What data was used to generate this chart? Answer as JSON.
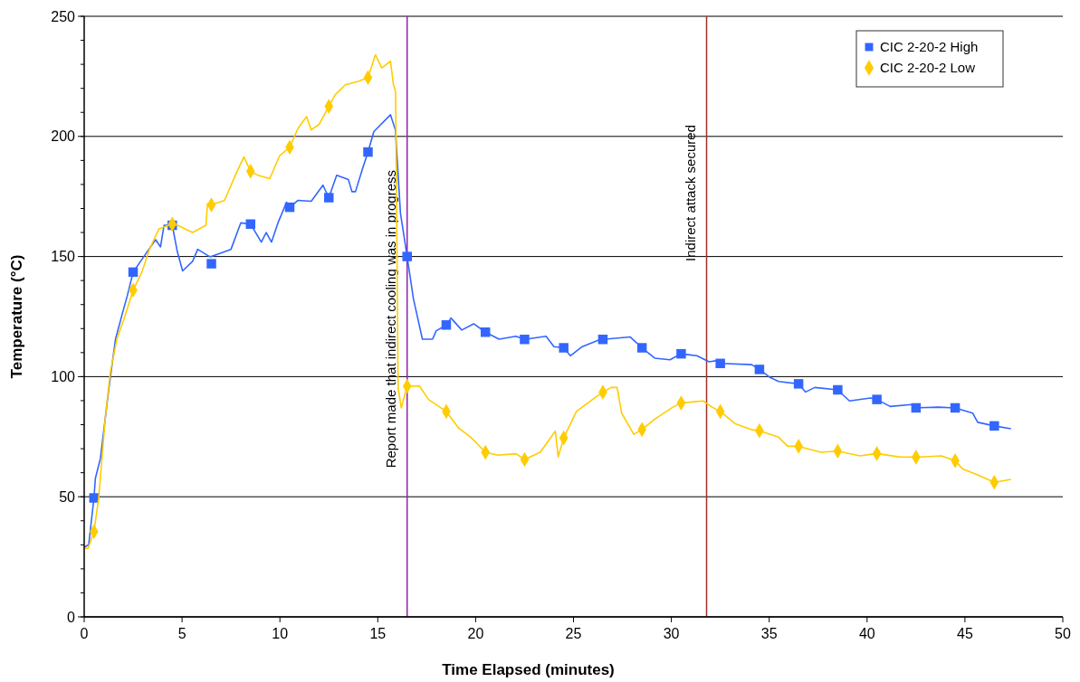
{
  "chart_data": {
    "type": "line",
    "xlabel": "Time Elapsed (minutes)",
    "ylabel": "Temperature (°C)",
    "xlim": [
      0,
      50
    ],
    "xticks": [
      0,
      5,
      10,
      15,
      20,
      25,
      30,
      35,
      40,
      45,
      50
    ],
    "ylim": [
      0,
      250
    ],
    "yticks": [
      0,
      50,
      100,
      150,
      200,
      250
    ],
    "grid": "y",
    "legend": "top right",
    "series": [
      {
        "name": "CIC 2-20-2 High",
        "color": "#3366ff",
        "x": [
          0,
          0.23,
          0.5,
          0.57,
          0.83,
          1.26,
          1.6,
          1.94,
          2.2,
          2.5,
          3.05,
          3.65,
          3.9,
          4.08,
          4.5,
          4.76,
          5.03,
          5.54,
          5.8,
          6.4,
          6.5,
          7.5,
          8.0,
          8.5,
          9.05,
          9.3,
          9.57,
          9.9,
          10.34,
          10.5,
          10.93,
          11.6,
          12.2,
          12.5,
          12.9,
          13.5,
          13.68,
          13.86,
          14.2,
          14.5,
          14.8,
          15.65,
          15.9,
          16.16,
          16.5,
          16.82,
          17.28,
          17.8,
          17.98,
          18.5,
          18.74,
          19.29,
          19.9,
          20.5,
          21.2,
          22.06,
          22.5,
          23.6,
          24.0,
          24.5,
          24.84,
          25.45,
          26.4,
          26.5,
          27.9,
          28.5,
          29.15,
          29.93,
          30.5,
          31.3,
          31.93,
          32.4,
          32.5,
          34.1,
          34.5,
          35.0,
          35.48,
          36.5,
          36.86,
          37.33,
          38.5,
          39.1,
          40.18,
          40.5,
          41.18,
          42.26,
          42.5,
          43.65,
          44.5,
          45.4,
          45.65,
          46.5,
          47.35
        ],
        "values": [
          29,
          30,
          49.5,
          57.6,
          66,
          95,
          115.6,
          126,
          133.6,
          143.5,
          150,
          157,
          154,
          163,
          163,
          152,
          144,
          148,
          153,
          150,
          150,
          153,
          164,
          163.5,
          156,
          160,
          156,
          164,
          172.6,
          170.5,
          173.4,
          173,
          179.7,
          174.5,
          183.8,
          182,
          177,
          177,
          186,
          193.5,
          202,
          209,
          202.7,
          168,
          150,
          132.5,
          115.6,
          115.6,
          119,
          121.5,
          124.4,
          119.4,
          122,
          118.5,
          115.6,
          116.8,
          115.5,
          116.8,
          112.5,
          112,
          108.7,
          112.5,
          115.6,
          115.5,
          116.5,
          112,
          107.7,
          107,
          109.5,
          108.7,
          106.2,
          106.8,
          105.5,
          105,
          103,
          99.9,
          98,
          97,
          93.6,
          95.5,
          94.5,
          89.9,
          91.1,
          90.5,
          87.6,
          88.4,
          87,
          87.3,
          87,
          84.8,
          81,
          79.5,
          78.3
        ]
      },
      {
        "color": "#3366ff",
        "type": "scatter",
        "marker": "square",
        "x": [
          0.5,
          2.5,
          4.5,
          6.5,
          8.5,
          10.5,
          12.5,
          14.5,
          16.5,
          18.5,
          20.5,
          22.5,
          24.5,
          26.5,
          28.5,
          30.5,
          32.5,
          34.5,
          36.5,
          38.5,
          40.5,
          42.5,
          44.5,
          46.5
        ],
        "values": [
          49.5,
          143.5,
          163,
          147,
          163.5,
          170.5,
          174.5,
          193.5,
          150,
          121.5,
          118.5,
          115.5,
          112,
          115.5,
          112,
          109.5,
          105.5,
          103,
          97,
          94.5,
          90.5,
          87,
          87,
          79.5
        ]
      },
      {
        "name": "CIC 2-20-2 Low",
        "color": "#ffcc00",
        "x": [
          0,
          0.2,
          0.5,
          0.74,
          1.09,
          1.34,
          1.68,
          2.03,
          2.5,
          2.97,
          3.31,
          3.82,
          4.5,
          4.76,
          5.54,
          6.22,
          6.3,
          6.5,
          7.17,
          7.68,
          8.16,
          8.5,
          8.88,
          9.48,
          9.99,
          10.5,
          10.93,
          11.36,
          11.6,
          12.0,
          12.5,
          12.82,
          13.34,
          14.0,
          14.5,
          14.88,
          15.2,
          15.65,
          15.8,
          15.91,
          16.04,
          16.2,
          16.5,
          17.13,
          17.59,
          18.5,
          19.13,
          19.75,
          20.5,
          21.14,
          22.06,
          22.5,
          23.3,
          24.07,
          24.22,
          24.5,
          25.15,
          26.07,
          26.5,
          26.92,
          27.23,
          27.46,
          28.08,
          28.5,
          29.15,
          30.08,
          30.5,
          31.62,
          32.08,
          32.5,
          33.24,
          34.09,
          34.5,
          35.48,
          35.94,
          36.5,
          37.64,
          38.5,
          39.64,
          40.5,
          41.64,
          42.5,
          43.8,
          44.5,
          44.88,
          45.65,
          46.5,
          47.35
        ],
        "values": [
          28.5,
          28.5,
          35.5,
          49.3,
          84,
          102,
          116,
          123.9,
          136,
          144,
          152.5,
          161.5,
          163.5,
          163,
          160,
          163,
          172,
          171.5,
          173.4,
          183,
          191.5,
          185.5,
          183.8,
          182.4,
          192,
          195.5,
          203.4,
          208.2,
          202.7,
          205,
          212.5,
          217.3,
          221.5,
          222.9,
          224.5,
          234,
          228.5,
          231.3,
          221.5,
          218.7,
          95.3,
          87,
          96,
          96.1,
          90.5,
          85.5,
          78.6,
          74.8,
          68.5,
          67.3,
          67.9,
          65.5,
          68.5,
          77.3,
          66.6,
          74.5,
          85.5,
          91.1,
          93.5,
          95.5,
          95.5,
          84.8,
          76,
          78,
          82.3,
          87.3,
          89,
          89.9,
          87.3,
          85.5,
          80.5,
          77.9,
          77.5,
          74.8,
          71,
          71,
          68.5,
          69,
          67,
          68,
          66.6,
          66.5,
          67,
          65,
          61.6,
          59.1,
          56,
          57.2
        ]
      },
      {
        "color": "#ffcc00",
        "type": "scatter",
        "marker": "diamond",
        "x": [
          0.5,
          2.5,
          4.5,
          6.5,
          8.5,
          10.5,
          12.5,
          14.5,
          16.5,
          18.5,
          20.5,
          22.5,
          24.5,
          26.5,
          28.5,
          30.5,
          32.5,
          34.5,
          36.5,
          38.5,
          40.5,
          42.5,
          44.5,
          46.5
        ],
        "values": [
          35.5,
          136,
          163.5,
          171.5,
          185.5,
          195.5,
          212.5,
          224.5,
          96,
          85.5,
          68.5,
          65.5,
          74.5,
          93.5,
          78,
          89,
          85.5,
          77.5,
          71,
          69,
          68,
          66.5,
          65,
          56
        ]
      }
    ],
    "ref_lines": [
      {
        "axis": "x",
        "value": 16.5,
        "label": "Report made that indirect cooling was in progress",
        "color": "#8e24aa"
      },
      {
        "axis": "x",
        "value": 31.8,
        "label": "Indirect attack secured",
        "color": "#a0302a"
      }
    ]
  }
}
